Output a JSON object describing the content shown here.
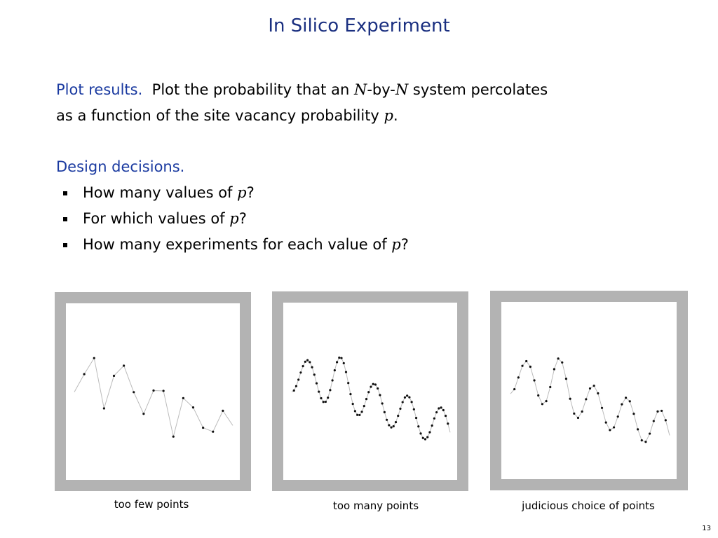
{
  "title": "In Silico Experiment",
  "sections": [
    {
      "heading": "Plot results.",
      "text": [
        "Plot the probability that an ",
        "N",
        "-by-",
        "N",
        " system percolates",
        "as a function of the site vacancy probability ",
        "p",
        "."
      ]
    },
    {
      "heading": "Design decisions.",
      "bullets": [
        [
          "How many values of ",
          "p",
          "?"
        ],
        [
          "For which values of ",
          "p",
          "?"
        ],
        [
          "How many experiments for each value of ",
          "p",
          "?"
        ]
      ]
    }
  ],
  "panels": [
    {
      "caption": "too few points"
    },
    {
      "caption": "too many points"
    },
    {
      "caption": "judicious choice of points"
    }
  ],
  "page_number": "13"
}
